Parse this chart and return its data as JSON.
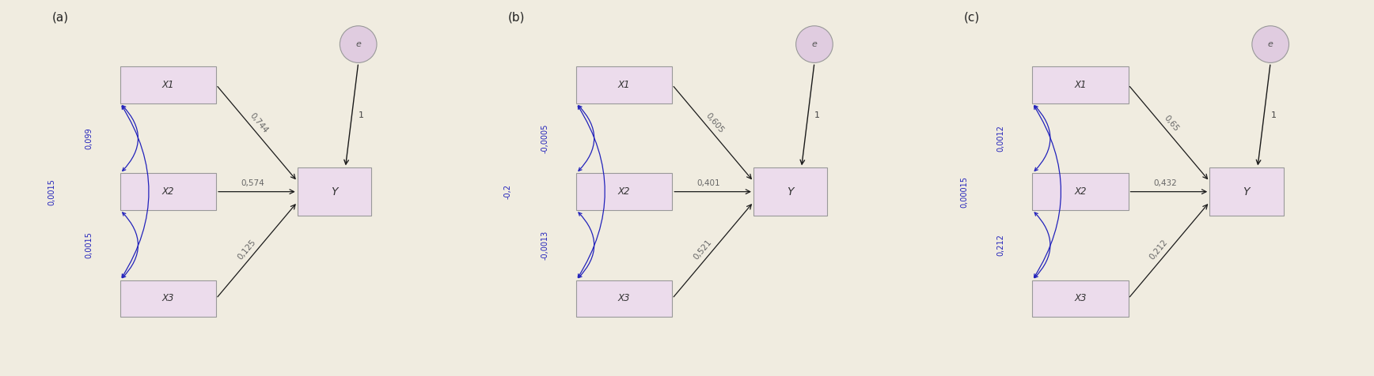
{
  "background_color": "#f0ece0",
  "box_fill": "#ecdcec",
  "box_edge": "#999999",
  "circle_fill": "#e0cce0",
  "circle_edge": "#999999",
  "arrow_color": "#1a1a1a",
  "curve_color": "#2222bb",
  "label_color": "#666666",
  "diagrams": [
    {
      "label": "(a)",
      "path_labels": [
        "0,744",
        "0,574",
        "0,125"
      ],
      "corr_12": "0,099",
      "corr_23": "0,0015",
      "corr_13": "0,0015",
      "arrow_label_e": "1"
    },
    {
      "label": "(b)",
      "path_labels": [
        "0,605",
        "0,401",
        "0,521"
      ],
      "corr_12": "-0,0005",
      "corr_23": "-0,0013",
      "corr_13": "-0,2",
      "arrow_label_e": "1"
    },
    {
      "label": "(c)",
      "path_labels": [
        "0,65",
        "0,432",
        "0,212"
      ],
      "corr_12": "0,0012",
      "corr_23": "0,212",
      "corr_13": "0,00015",
      "arrow_label_e": "1"
    }
  ]
}
